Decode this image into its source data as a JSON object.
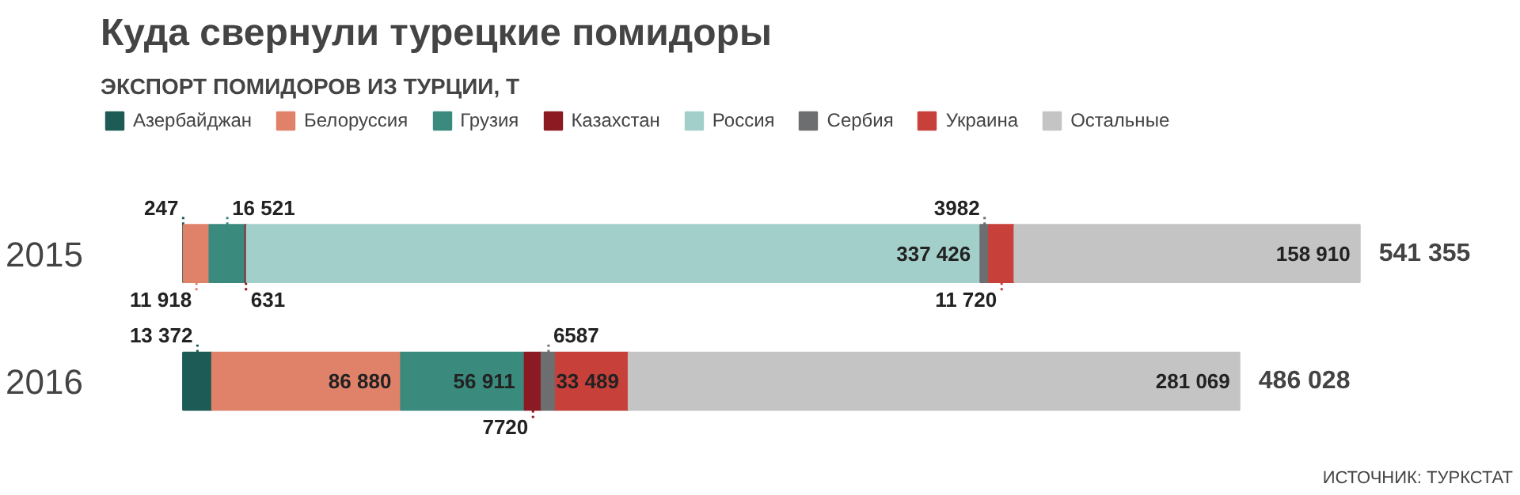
{
  "chart_data": {
    "type": "bar",
    "orientation": "horizontal",
    "stacked": true,
    "title": "Куда свернули турецкие помидоры",
    "subtitle": "ЭКСПОРТ ПОМИДОРОВ ИЗ ТУРЦИИ, Т",
    "categories": [
      "2015",
      "2016"
    ],
    "series": [
      {
        "name": "Азербайджан",
        "color": "#1d5b57",
        "values": [
          247,
          13372
        ],
        "value_labels": [
          "247",
          "13 372"
        ]
      },
      {
        "name": "Белоруссия",
        "color": "#e0826a",
        "values": [
          11918,
          86880
        ],
        "value_labels": [
          "11 918",
          "86 880"
        ]
      },
      {
        "name": "Грузия",
        "color": "#3a8a7e",
        "values": [
          16521,
          56911
        ],
        "value_labels": [
          "16 521",
          "56 911"
        ]
      },
      {
        "name": "Казахстан",
        "color": "#8b1a22",
        "values": [
          631,
          7720
        ],
        "value_labels": [
          "631",
          "7720"
        ]
      },
      {
        "name": "Россия",
        "color": "#a3cfcb",
        "values": [
          337426,
          null
        ],
        "value_labels": [
          "337 426",
          null
        ]
      },
      {
        "name": "Сербия",
        "color": "#6d6e70",
        "values": [
          3982,
          6587
        ],
        "value_labels": [
          "3982",
          "6587"
        ]
      },
      {
        "name": "Украина",
        "color": "#c8403a",
        "values": [
          11720,
          33489
        ],
        "value_labels": [
          "11 720",
          "33 489"
        ]
      },
      {
        "name": "Остальные",
        "color": "#c4c4c4",
        "values": [
          158910,
          281069
        ],
        "value_labels": [
          "158 910",
          "281 069"
        ]
      }
    ],
    "totals": [
      "541 355",
      "486 028"
    ],
    "legend": "top",
    "annotations": [
      "ИСТОЧНИК: ТУРКСТАТ"
    ]
  }
}
